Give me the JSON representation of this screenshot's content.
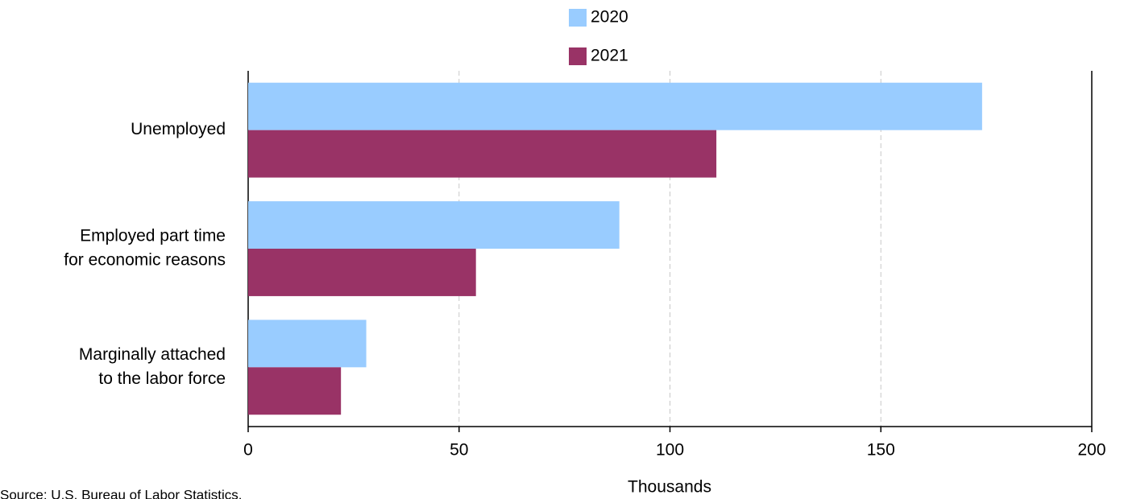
{
  "chart_data": {
    "type": "hbar",
    "categories": [
      [
        "Unemployed"
      ],
      [
        "Employed part time",
        "for economic reasons"
      ],
      [
        "Marginally attached",
        "to the labor force"
      ]
    ],
    "series": [
      {
        "name": "2020",
        "color": "#99ccff",
        "values": [
          174,
          88,
          28
        ]
      },
      {
        "name": "2021",
        "color": "#993366",
        "values": [
          111,
          54,
          22
        ]
      }
    ],
    "xlabel": "Thousands",
    "xlim": [
      0,
      200
    ],
    "xticks": [
      0,
      50,
      100,
      150,
      200
    ],
    "grid": true,
    "legend": "top",
    "source": "Source: U.S. Bureau of Labor Statistics."
  }
}
